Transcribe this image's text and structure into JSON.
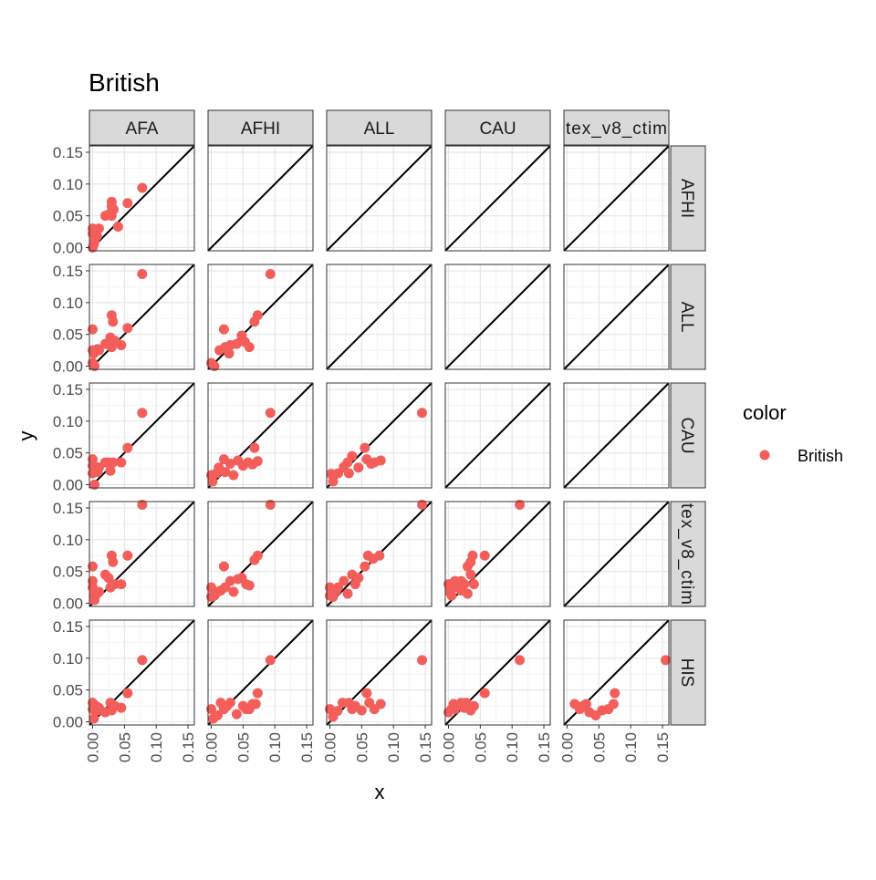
{
  "chart_data": {
    "type": "scatter",
    "title": "British",
    "xlabel": "x",
    "ylabel": "y",
    "xlim": [
      -0.005,
      0.16
    ],
    "ylim": [
      -0.005,
      0.16
    ],
    "ticks": [
      0.0,
      0.05,
      0.1,
      0.15
    ],
    "tick_labels": [
      "0.00",
      "0.05",
      "0.10",
      "0.15"
    ],
    "minor_ticks": [
      0.025,
      0.075,
      0.125
    ],
    "grid": true,
    "reference_line": "y = x",
    "facet_cols": [
      "AFA",
      "AFHI",
      "ALL",
      "CAU",
      "tex_v8_ctim"
    ],
    "facet_rows": [
      "AFHI",
      "ALL",
      "CAU",
      "tex_v8_ctim",
      "HIS"
    ],
    "legend": {
      "title": "color",
      "position": "right",
      "entries": [
        {
          "label": "British",
          "color": "#f35e5a"
        }
      ]
    },
    "point_color": "#f35e5a",
    "panels": [
      {
        "row": "AFHI",
        "col": "AFA",
        "points": [
          [
            0.0,
            0.03
          ],
          [
            0.0,
            0.022
          ],
          [
            0.003,
            0.01
          ],
          [
            0.0,
            0.0
          ],
          [
            0.005,
            0.028
          ],
          [
            0.01,
            0.03
          ],
          [
            0.002,
            0.005
          ],
          [
            0.007,
            0.018
          ],
          [
            0.02,
            0.05
          ],
          [
            0.025,
            0.052
          ],
          [
            0.03,
            0.072
          ],
          [
            0.03,
            0.065
          ],
          [
            0.033,
            0.06
          ],
          [
            0.03,
            0.05
          ],
          [
            0.028,
            0.052
          ],
          [
            0.04,
            0.033
          ],
          [
            0.055,
            0.07
          ],
          [
            0.078,
            0.094
          ]
        ]
      },
      {
        "row": "ALL",
        "col": "AFA",
        "points": [
          [
            0.0,
            0.058
          ],
          [
            0.0,
            0.025
          ],
          [
            0.002,
            0.02
          ],
          [
            0.0,
            0.005
          ],
          [
            0.003,
            0.0
          ],
          [
            0.008,
            0.027
          ],
          [
            0.01,
            0.025
          ],
          [
            0.02,
            0.035
          ],
          [
            0.028,
            0.045
          ],
          [
            0.03,
            0.08
          ],
          [
            0.032,
            0.07
          ],
          [
            0.03,
            0.03
          ],
          [
            0.035,
            0.04
          ],
          [
            0.045,
            0.033
          ],
          [
            0.055,
            0.06
          ],
          [
            0.078,
            0.145
          ]
        ]
      },
      {
        "row": "ALL",
        "col": "AFHI",
        "points": [
          [
            0.0,
            0.005
          ],
          [
            0.005,
            0.0
          ],
          [
            0.013,
            0.025
          ],
          [
            0.02,
            0.058
          ],
          [
            0.022,
            0.03
          ],
          [
            0.03,
            0.033
          ],
          [
            0.028,
            0.02
          ],
          [
            0.04,
            0.035
          ],
          [
            0.048,
            0.048
          ],
          [
            0.053,
            0.038
          ],
          [
            0.06,
            0.03
          ],
          [
            0.068,
            0.07
          ],
          [
            0.073,
            0.08
          ],
          [
            0.093,
            0.145
          ]
        ]
      },
      {
        "row": "CAU",
        "col": "AFA",
        "points": [
          [
            0.0,
            0.04
          ],
          [
            0.0,
            0.03
          ],
          [
            0.0,
            0.018
          ],
          [
            0.003,
            0.0
          ],
          [
            0.005,
            0.028
          ],
          [
            0.008,
            0.02
          ],
          [
            0.01,
            0.027
          ],
          [
            0.02,
            0.035
          ],
          [
            0.025,
            0.035
          ],
          [
            0.028,
            0.022
          ],
          [
            0.032,
            0.035
          ],
          [
            0.045,
            0.035
          ],
          [
            0.055,
            0.058
          ],
          [
            0.078,
            0.113
          ]
        ]
      },
      {
        "row": "CAU",
        "col": "AFHI",
        "points": [
          [
            0.0,
            0.015
          ],
          [
            0.002,
            0.005
          ],
          [
            0.008,
            0.018
          ],
          [
            0.012,
            0.027
          ],
          [
            0.02,
            0.04
          ],
          [
            0.022,
            0.02
          ],
          [
            0.03,
            0.033
          ],
          [
            0.035,
            0.015
          ],
          [
            0.042,
            0.038
          ],
          [
            0.05,
            0.03
          ],
          [
            0.058,
            0.035
          ],
          [
            0.065,
            0.032
          ],
          [
            0.068,
            0.058
          ],
          [
            0.073,
            0.037
          ],
          [
            0.093,
            0.113
          ]
        ]
      },
      {
        "row": "CAU",
        "col": "ALL",
        "points": [
          [
            0.002,
            0.017
          ],
          [
            0.005,
            0.005
          ],
          [
            0.013,
            0.018
          ],
          [
            0.022,
            0.028
          ],
          [
            0.028,
            0.035
          ],
          [
            0.03,
            0.018
          ],
          [
            0.035,
            0.045
          ],
          [
            0.045,
            0.027
          ],
          [
            0.055,
            0.058
          ],
          [
            0.058,
            0.04
          ],
          [
            0.065,
            0.033
          ],
          [
            0.07,
            0.035
          ],
          [
            0.08,
            0.038
          ],
          [
            0.145,
            0.113
          ]
        ]
      },
      {
        "row": "tex_v8_ctim",
        "col": "AFA",
        "points": [
          [
            0.0,
            0.058
          ],
          [
            0.0,
            0.035
          ],
          [
            0.0,
            0.025
          ],
          [
            0.002,
            0.012
          ],
          [
            0.003,
            0.005
          ],
          [
            0.007,
            0.015
          ],
          [
            0.01,
            0.018
          ],
          [
            0.02,
            0.045
          ],
          [
            0.025,
            0.04
          ],
          [
            0.028,
            0.025
          ],
          [
            0.03,
            0.075
          ],
          [
            0.032,
            0.065
          ],
          [
            0.035,
            0.03
          ],
          [
            0.045,
            0.03
          ],
          [
            0.055,
            0.075
          ],
          [
            0.078,
            0.155
          ]
        ]
      },
      {
        "row": "tex_v8_ctim",
        "col": "AFHI",
        "points": [
          [
            0.0,
            0.025
          ],
          [
            0.0,
            0.01
          ],
          [
            0.005,
            0.012
          ],
          [
            0.01,
            0.018
          ],
          [
            0.015,
            0.02
          ],
          [
            0.02,
            0.058
          ],
          [
            0.022,
            0.025
          ],
          [
            0.03,
            0.035
          ],
          [
            0.035,
            0.018
          ],
          [
            0.042,
            0.038
          ],
          [
            0.048,
            0.04
          ],
          [
            0.055,
            0.03
          ],
          [
            0.06,
            0.028
          ],
          [
            0.068,
            0.068
          ],
          [
            0.073,
            0.075
          ],
          [
            0.093,
            0.155
          ]
        ]
      },
      {
        "row": "tex_v8_ctim",
        "col": "ALL",
        "points": [
          [
            0.0,
            0.025
          ],
          [
            0.0,
            0.012
          ],
          [
            0.005,
            0.01
          ],
          [
            0.01,
            0.02
          ],
          [
            0.013,
            0.025
          ],
          [
            0.022,
            0.035
          ],
          [
            0.028,
            0.015
          ],
          [
            0.035,
            0.045
          ],
          [
            0.04,
            0.03
          ],
          [
            0.045,
            0.04
          ],
          [
            0.055,
            0.058
          ],
          [
            0.06,
            0.075
          ],
          [
            0.068,
            0.07
          ],
          [
            0.078,
            0.075
          ],
          [
            0.145,
            0.155
          ]
        ]
      },
      {
        "row": "tex_v8_ctim",
        "col": "CAU",
        "points": [
          [
            0.0,
            0.03
          ],
          [
            0.002,
            0.018
          ],
          [
            0.005,
            0.012
          ],
          [
            0.008,
            0.025
          ],
          [
            0.01,
            0.035
          ],
          [
            0.015,
            0.025
          ],
          [
            0.02,
            0.035
          ],
          [
            0.02,
            0.02
          ],
          [
            0.025,
            0.03
          ],
          [
            0.03,
            0.015
          ],
          [
            0.03,
            0.058
          ],
          [
            0.035,
            0.065
          ],
          [
            0.035,
            0.045
          ],
          [
            0.038,
            0.075
          ],
          [
            0.04,
            0.03
          ],
          [
            0.057,
            0.075
          ],
          [
            0.112,
            0.155
          ]
        ]
      },
      {
        "row": "HIS",
        "col": "AFA",
        "points": [
          [
            0.0,
            0.03
          ],
          [
            0.0,
            0.02
          ],
          [
            0.002,
            0.005
          ],
          [
            0.005,
            0.025
          ],
          [
            0.008,
            0.018
          ],
          [
            0.01,
            0.022
          ],
          [
            0.02,
            0.015
          ],
          [
            0.028,
            0.03
          ],
          [
            0.03,
            0.018
          ],
          [
            0.035,
            0.025
          ],
          [
            0.045,
            0.022
          ],
          [
            0.055,
            0.045
          ],
          [
            0.078,
            0.097
          ]
        ]
      },
      {
        "row": "HIS",
        "col": "AFHI",
        "points": [
          [
            0.0,
            0.02
          ],
          [
            0.003,
            0.005
          ],
          [
            0.01,
            0.01
          ],
          [
            0.015,
            0.03
          ],
          [
            0.02,
            0.02
          ],
          [
            0.025,
            0.025
          ],
          [
            0.03,
            0.03
          ],
          [
            0.04,
            0.012
          ],
          [
            0.05,
            0.025
          ],
          [
            0.055,
            0.02
          ],
          [
            0.06,
            0.02
          ],
          [
            0.065,
            0.028
          ],
          [
            0.07,
            0.028
          ],
          [
            0.073,
            0.045
          ],
          [
            0.093,
            0.097
          ]
        ]
      },
      {
        "row": "HIS",
        "col": "ALL",
        "points": [
          [
            0.0,
            0.02
          ],
          [
            0.005,
            0.008
          ],
          [
            0.012,
            0.017
          ],
          [
            0.02,
            0.03
          ],
          [
            0.03,
            0.03
          ],
          [
            0.035,
            0.02
          ],
          [
            0.04,
            0.025
          ],
          [
            0.05,
            0.018
          ],
          [
            0.058,
            0.045
          ],
          [
            0.062,
            0.03
          ],
          [
            0.07,
            0.02
          ],
          [
            0.08,
            0.028
          ],
          [
            0.145,
            0.097
          ]
        ]
      },
      {
        "row": "HIS",
        "col": "CAU",
        "points": [
          [
            0.0,
            0.015
          ],
          [
            0.005,
            0.02
          ],
          [
            0.008,
            0.028
          ],
          [
            0.01,
            0.02
          ],
          [
            0.015,
            0.025
          ],
          [
            0.02,
            0.03
          ],
          [
            0.025,
            0.022
          ],
          [
            0.028,
            0.03
          ],
          [
            0.035,
            0.018
          ],
          [
            0.04,
            0.025
          ],
          [
            0.057,
            0.045
          ],
          [
            0.112,
            0.097
          ]
        ]
      },
      {
        "row": "HIS",
        "col": "tex_v8_ctim",
        "points": [
          [
            0.012,
            0.028
          ],
          [
            0.02,
            0.02
          ],
          [
            0.025,
            0.025
          ],
          [
            0.03,
            0.028
          ],
          [
            0.035,
            0.015
          ],
          [
            0.045,
            0.01
          ],
          [
            0.055,
            0.018
          ],
          [
            0.065,
            0.02
          ],
          [
            0.073,
            0.028
          ],
          [
            0.075,
            0.045
          ],
          [
            0.155,
            0.097
          ]
        ]
      }
    ]
  }
}
